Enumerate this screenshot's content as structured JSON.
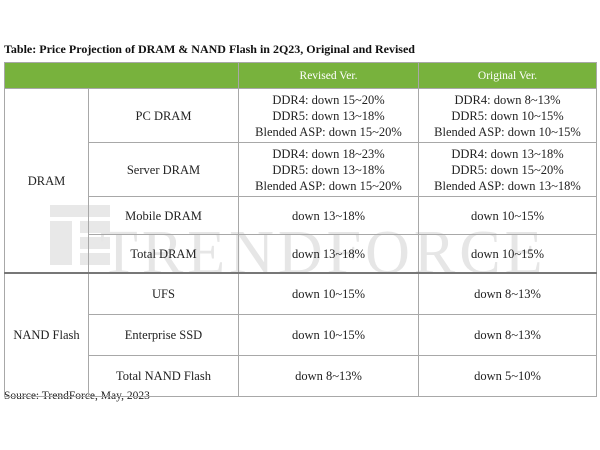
{
  "caption": "Table: Price Projection of DRAM & NAND Flash in 2Q23, Original and Revised",
  "header": {
    "revised": "Revised Ver.",
    "original": "Original Ver."
  },
  "dram": {
    "category": "DRAM",
    "pc": {
      "label": "PC DRAM",
      "revised": [
        "DDR4: down 15~20%",
        "DDR5: down 13~18%",
        "Blended ASP: down 15~20%"
      ],
      "original": [
        "DDR4: down 8~13%",
        "DDR5: down 10~15%",
        "Blended ASP: down 10~15%"
      ]
    },
    "server": {
      "label": "Server DRAM",
      "revised": [
        "DDR4: down 18~23%",
        "DDR5: down 13~18%",
        "Blended ASP: down 15~20%"
      ],
      "original": [
        "DDR4: down 13~18%",
        "DDR5: down 15~20%",
        "Blended ASP: down 13~18%"
      ]
    },
    "mobile": {
      "label": "Mobile DRAM",
      "revised": "down 13~18%",
      "original": "down 10~15%"
    },
    "total": {
      "label": "Total DRAM",
      "revised": "down 13~18%",
      "original": "down 10~15%"
    }
  },
  "nand": {
    "category": "NAND Flash",
    "ufs": {
      "label": "UFS",
      "revised": "down 10~15%",
      "original": "down 8~13%"
    },
    "enterprise": {
      "label": "Enterprise SSD",
      "revised": "down 10~15%",
      "original": "down 8~13%"
    },
    "total": {
      "label": "Total NAND Flash",
      "revised": "down 8~13%",
      "original": "down 5~10%"
    }
  },
  "watermark": {
    "text": "TRENDFORCE"
  },
  "source": "Source: TrendForce, May, 2023"
}
